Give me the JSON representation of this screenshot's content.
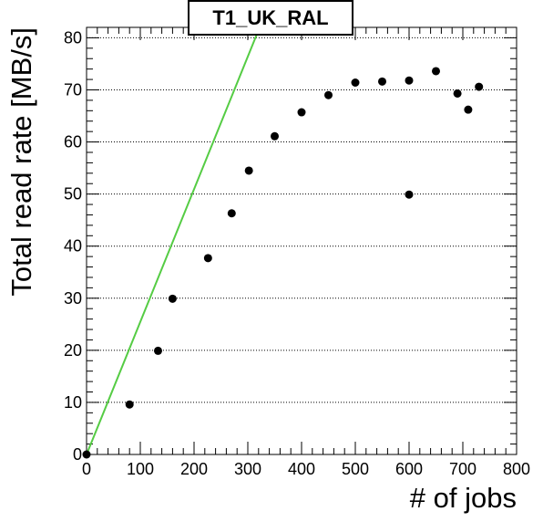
{
  "chart_data": {
    "type": "scatter",
    "title": "T1_UK_RAL",
    "xlabel": "# of jobs",
    "ylabel": "Total read rate [MB/s]",
    "xlim": [
      0,
      800
    ],
    "ylim": [
      0,
      82
    ],
    "x_ticks": [
      0,
      100,
      200,
      300,
      400,
      500,
      600,
      700,
      800
    ],
    "y_ticks": [
      0,
      10,
      20,
      30,
      40,
      50,
      60,
      70,
      80
    ],
    "grid": "horizontal dotted",
    "legend": "none",
    "series": [
      {
        "type": "scatter",
        "marker_color": "#000000",
        "points": [
          {
            "x": 0,
            "y": 0
          },
          {
            "x": 80,
            "y": 9.6
          },
          {
            "x": 133,
            "y": 19.9
          },
          {
            "x": 160,
            "y": 29.9
          },
          {
            "x": 226,
            "y": 37.7
          },
          {
            "x": 270,
            "y": 46.3
          },
          {
            "x": 302,
            "y": 54.5
          },
          {
            "x": 350,
            "y": 61.1
          },
          {
            "x": 400,
            "y": 65.7
          },
          {
            "x": 450,
            "y": 69.0
          },
          {
            "x": 500,
            "y": 71.4
          },
          {
            "x": 550,
            "y": 71.6
          },
          {
            "x": 600,
            "y": 71.8
          },
          {
            "x": 600,
            "y": 49.9
          },
          {
            "x": 650,
            "y": 73.6
          },
          {
            "x": 690,
            "y": 69.3
          },
          {
            "x": 710,
            "y": 66.2
          },
          {
            "x": 730,
            "y": 70.6
          }
        ]
      },
      {
        "type": "line",
        "line_color": "#55cc44",
        "points": [
          {
            "x": 0,
            "y": 0
          },
          {
            "x": 322,
            "y": 82
          }
        ]
      }
    ]
  }
}
